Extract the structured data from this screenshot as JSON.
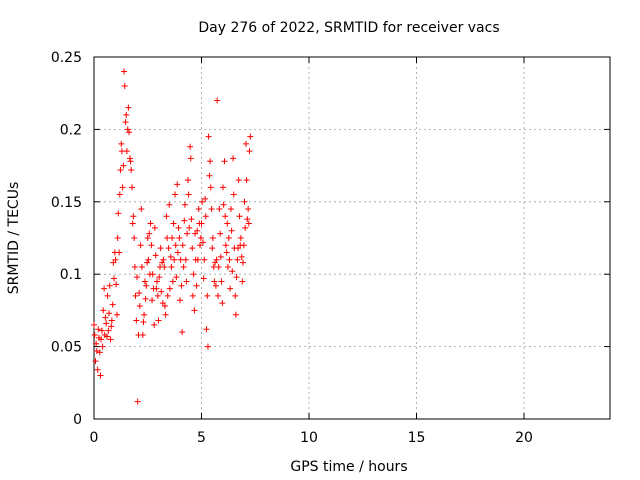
{
  "chart_data": {
    "type": "scatter",
    "title": "Day 276 of 2022, SRMTID for receiver vacs",
    "xlabel": "GPS time / hours",
    "ylabel": "SRMTID / TECUs",
    "xlim": [
      0,
      24
    ],
    "ylim": [
      0,
      0.25
    ],
    "xticks": [
      0,
      5,
      10,
      15,
      20
    ],
    "xtick_labels": [
      "0",
      "5",
      "10",
      "15",
      "20"
    ],
    "yticks": [
      0,
      0.05,
      0.1,
      0.15,
      0.2,
      0.25
    ],
    "ytick_labels": [
      "0",
      "0.05",
      "0.1",
      "0.15",
      "0.2",
      "0.25"
    ],
    "grid": true,
    "marker": "+",
    "color": "#ff0000",
    "series": [
      {
        "name": "SRMTID",
        "x": [
          0.0,
          0.03,
          0.07,
          0.1,
          0.13,
          0.17,
          0.2,
          0.23,
          0.27,
          0.3,
          0.33,
          0.37,
          0.4,
          0.43,
          0.47,
          0.5,
          0.53,
          0.57,
          0.6,
          0.63,
          0.67,
          0.7,
          0.73,
          0.77,
          0.8,
          0.83,
          0.87,
          0.9,
          0.93,
          0.97,
          1.0,
          1.03,
          1.07,
          1.1,
          1.13,
          1.17,
          1.2,
          1.23,
          1.27,
          1.3,
          1.33,
          1.37,
          1.4,
          1.43,
          1.47,
          1.5,
          1.53,
          1.57,
          1.6,
          1.63,
          1.67,
          1.7,
          1.73,
          1.77,
          1.8,
          1.83,
          1.87,
          1.9,
          1.93,
          1.97,
          2.0,
          2.03,
          2.07,
          2.1,
          2.13,
          2.17,
          2.2,
          2.23,
          2.27,
          2.3,
          2.33,
          2.37,
          2.4,
          2.43,
          2.47,
          2.5,
          2.53,
          2.57,
          2.6,
          2.63,
          2.67,
          2.7,
          2.73,
          2.77,
          2.8,
          2.83,
          2.87,
          2.9,
          2.93,
          2.97,
          3.0,
          3.03,
          3.07,
          3.1,
          3.13,
          3.17,
          3.2,
          3.23,
          3.27,
          3.3,
          3.33,
          3.37,
          3.4,
          3.43,
          3.47,
          3.5,
          3.53,
          3.57,
          3.6,
          3.63,
          3.67,
          3.7,
          3.73,
          3.77,
          3.8,
          3.83,
          3.87,
          3.9,
          3.93,
          3.97,
          4.0,
          4.03,
          4.07,
          4.1,
          4.13,
          4.17,
          4.2,
          4.23,
          4.27,
          4.3,
          4.33,
          4.37,
          4.4,
          4.43,
          4.47,
          4.5,
          4.53,
          4.57,
          4.6,
          4.63,
          4.67,
          4.7,
          4.73,
          4.77,
          4.8,
          4.83,
          4.87,
          4.9,
          4.93,
          4.97,
          5.0,
          5.03,
          5.07,
          5.1,
          5.13,
          5.17,
          5.2,
          5.23,
          5.27,
          5.3,
          5.33,
          5.37,
          5.4,
          5.43,
          5.47,
          5.5,
          5.53,
          5.57,
          5.6,
          5.63,
          5.67,
          5.7,
          5.73,
          5.77,
          5.8,
          5.83,
          5.87,
          5.9,
          5.93,
          5.97,
          6.0,
          6.03,
          6.07,
          6.1,
          6.13,
          6.17,
          6.2,
          6.23,
          6.27,
          6.3,
          6.33,
          6.37,
          6.4,
          6.43,
          6.47,
          6.5,
          6.53,
          6.57,
          6.6,
          6.63,
          6.67,
          6.7,
          6.73,
          6.77,
          6.8,
          6.83,
          6.87,
          6.9,
          6.93,
          6.97,
          7.0,
          7.03,
          7.07,
          7.1,
          7.13,
          7.17,
          7.2,
          7.23,
          7.27
        ],
        "y": [
          0.065,
          0.058,
          0.04,
          0.052,
          0.047,
          0.034,
          0.062,
          0.056,
          0.046,
          0.03,
          0.055,
          0.061,
          0.05,
          0.075,
          0.09,
          0.058,
          0.07,
          0.066,
          0.057,
          0.085,
          0.061,
          0.073,
          0.092,
          0.055,
          0.064,
          0.068,
          0.079,
          0.108,
          0.097,
          0.115,
          0.11,
          0.093,
          0.072,
          0.125,
          0.142,
          0.115,
          0.155,
          0.172,
          0.19,
          0.185,
          0.16,
          0.175,
          0.24,
          0.23,
          0.205,
          0.21,
          0.185,
          0.2,
          0.215,
          0.198,
          0.18,
          0.178,
          0.172,
          0.16,
          0.135,
          0.14,
          0.125,
          0.105,
          0.085,
          0.068,
          0.098,
          0.012,
          0.058,
          0.087,
          0.078,
          0.12,
          0.145,
          0.105,
          0.058,
          0.067,
          0.072,
          0.095,
          0.083,
          0.092,
          0.108,
          0.125,
          0.11,
          0.128,
          0.1,
          0.135,
          0.12,
          0.082,
          0.1,
          0.09,
          0.065,
          0.132,
          0.113,
          0.09,
          0.095,
          0.085,
          0.068,
          0.098,
          0.105,
          0.118,
          0.088,
          0.108,
          0.08,
          0.11,
          0.105,
          0.078,
          0.072,
          0.14,
          0.125,
          0.085,
          0.118,
          0.148,
          0.09,
          0.112,
          0.105,
          0.125,
          0.095,
          0.135,
          0.11,
          0.155,
          0.12,
          0.098,
          0.162,
          0.115,
          0.132,
          0.125,
          0.082,
          0.11,
          0.092,
          0.06,
          0.12,
          0.105,
          0.137,
          0.148,
          0.11,
          0.095,
          0.128,
          0.165,
          0.155,
          0.132,
          0.188,
          0.18,
          0.138,
          0.118,
          0.085,
          0.1,
          0.075,
          0.128,
          0.11,
          0.092,
          0.13,
          0.11,
          0.145,
          0.135,
          0.12,
          0.125,
          0.135,
          0.15,
          0.122,
          0.097,
          0.11,
          0.152,
          0.14,
          0.062,
          0.085,
          0.05,
          0.195,
          0.168,
          0.178,
          0.16,
          0.145,
          0.118,
          0.125,
          0.105,
          0.095,
          0.108,
          0.092,
          0.11,
          0.22,
          0.085,
          0.105,
          0.145,
          0.128,
          0.112,
          0.095,
          0.08,
          0.16,
          0.148,
          0.178,
          0.14,
          0.12,
          0.115,
          0.135,
          0.105,
          0.125,
          0.11,
          0.09,
          0.145,
          0.13,
          0.102,
          0.18,
          0.155,
          0.118,
          0.085,
          0.072,
          0.098,
          0.11,
          0.118,
          0.165,
          0.14,
          0.12,
          0.125,
          0.112,
          0.095,
          0.108,
          0.12,
          0.15,
          0.132,
          0.19,
          0.165,
          0.138,
          0.145,
          0.135,
          0.185,
          0.195
        ]
      }
    ]
  }
}
